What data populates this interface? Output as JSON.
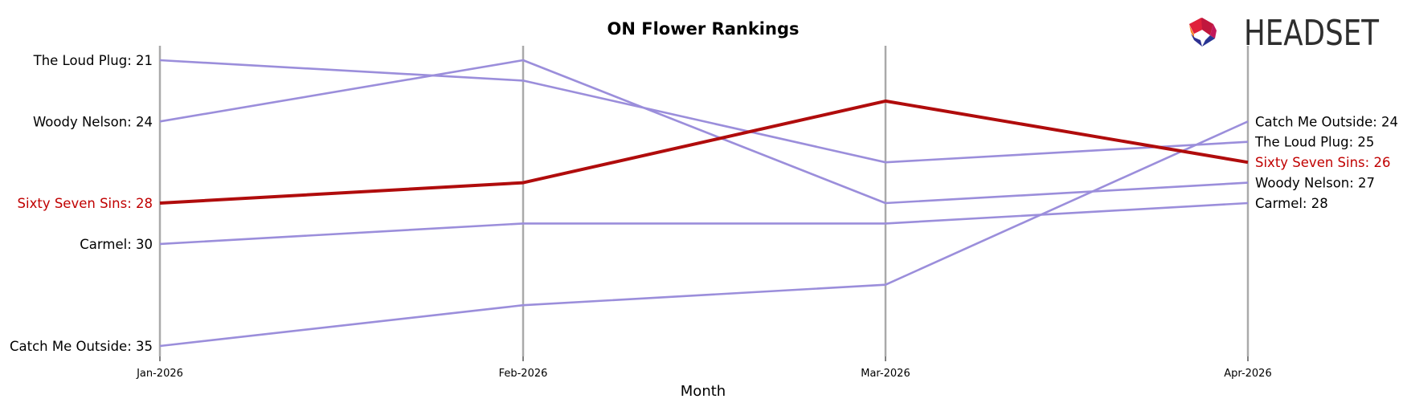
{
  "chart_data": {
    "type": "line",
    "title": "ON Flower Rankings",
    "xlabel": "Month",
    "ylabel": "",
    "categories": [
      "Jan-2026",
      "Feb-2026",
      "Mar-2026",
      "Apr-2026"
    ],
    "y_reversed": true,
    "ylim": [
      20,
      36
    ],
    "series": [
      {
        "name": "The Loud Plug",
        "values": [
          21,
          22,
          26,
          25
        ],
        "highlight": false
      },
      {
        "name": "Woody Nelson",
        "values": [
          24,
          21,
          28,
          27
        ],
        "highlight": false
      },
      {
        "name": "Sixty Seven Sins",
        "values": [
          28,
          27,
          23,
          26
        ],
        "highlight": true
      },
      {
        "name": "Carmel",
        "values": [
          30,
          29,
          29,
          28
        ],
        "highlight": false
      },
      {
        "name": "Catch Me Outside",
        "values": [
          35,
          33,
          32,
          24
        ],
        "highlight": false
      }
    ],
    "left_labels": [
      {
        "text": "The Loud Plug: 21",
        "series": 0
      },
      {
        "text": "Woody Nelson: 24",
        "series": 1
      },
      {
        "text": "Sixty Seven Sins: 28",
        "series": 2
      },
      {
        "text": "Carmel: 30",
        "series": 3
      },
      {
        "text": "Catch Me Outside: 35",
        "series": 4
      }
    ],
    "right_labels": [
      {
        "text": "Catch Me Outside: 24",
        "series": 4
      },
      {
        "text": "The Loud Plug: 25",
        "series": 0
      },
      {
        "text": "Sixty Seven Sins: 26",
        "series": 2
      },
      {
        "text": "Woody Nelson: 27",
        "series": 1
      },
      {
        "text": "Carmel: 28",
        "series": 3
      }
    ],
    "colors": {
      "default_line": "#9b8edb",
      "highlight_line": "#b00c0c",
      "highlight_text": "#c00000",
      "axis_line": "#aaaaaa",
      "text": "#000000"
    },
    "grid": false,
    "legend": "none"
  },
  "logo": {
    "text": "HEADSET",
    "icon": "headset-logo-icon"
  }
}
